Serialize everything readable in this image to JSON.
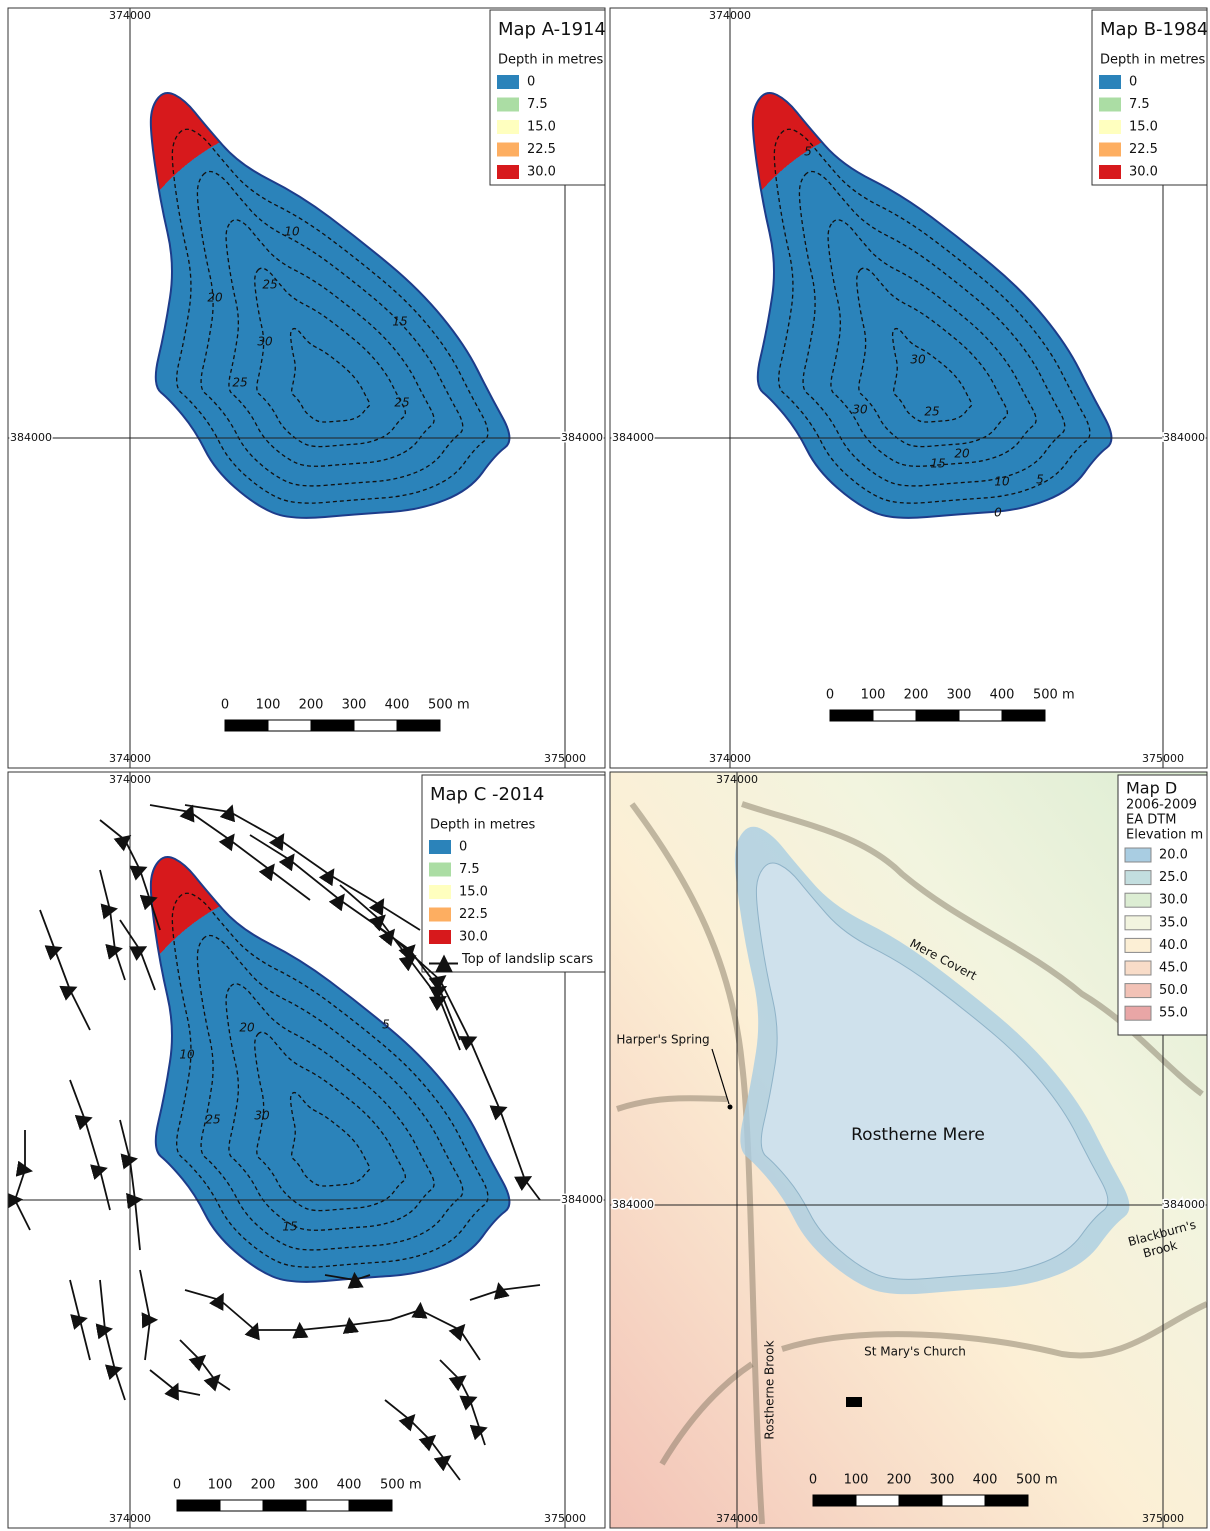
{
  "maps": [
    {
      "title": "Map A-1914",
      "legend_title": "Depth in metres",
      "legend": [
        {
          "label": "0",
          "color": "#2b83ba"
        },
        {
          "label": "7.5",
          "color": "#abdda4"
        },
        {
          "label": "15.0",
          "color": "#ffffbf"
        },
        {
          "label": "22.5",
          "color": "#fdae61"
        },
        {
          "label": "30.0",
          "color": "#d7191c"
        }
      ],
      "grid_labels": {
        "top": "374000",
        "left": "384000",
        "right": "384000",
        "bottom_left": "374000",
        "bottom_right": "375000"
      },
      "scale_labels": [
        "0",
        "100",
        "200",
        "300",
        "400",
        "500 m"
      ],
      "contour_labels": [
        "10",
        "20",
        "25",
        "15",
        "30",
        "25",
        "25"
      ]
    },
    {
      "title": "Map B-1984",
      "legend_title": "Depth in metres",
      "legend": [
        {
          "label": "0",
          "color": "#2b83ba"
        },
        {
          "label": "7.5",
          "color": "#abdda4"
        },
        {
          "label": "15.0",
          "color": "#ffffbf"
        },
        {
          "label": "22.5",
          "color": "#fdae61"
        },
        {
          "label": "30.0",
          "color": "#d7191c"
        }
      ],
      "grid_labels": {
        "top": "374000",
        "left": "384000",
        "right": "384000",
        "bottom_left": "374000",
        "bottom_right": "375000"
      },
      "scale_labels": [
        "0",
        "100",
        "200",
        "300",
        "400",
        "500 m"
      ],
      "contour_labels": [
        "5",
        "30",
        "30",
        "25",
        "20",
        "15",
        "10",
        "5",
        "0"
      ]
    },
    {
      "title": "Map C -2014",
      "legend_title": "Depth in metres",
      "legend": [
        {
          "label": "0",
          "color": "#2b83ba"
        },
        {
          "label": "7.5",
          "color": "#abdda4"
        },
        {
          "label": "15.0",
          "color": "#ffffbf"
        },
        {
          "label": "22.5",
          "color": "#fdae61"
        },
        {
          "label": "30.0",
          "color": "#d7191c"
        }
      ],
      "landslip_label": "Top of landslip scars",
      "grid_labels": {
        "top": "374000",
        "right": "384000",
        "bottom_left": "374000",
        "bottom_right": "375000"
      },
      "scale_labels": [
        "0",
        "100",
        "200",
        "300",
        "400",
        "500 m"
      ],
      "contour_labels": [
        "5",
        "20",
        "10",
        "30",
        "25",
        "15"
      ]
    },
    {
      "title": "Map D",
      "subtitle_lines": [
        "2006-2009",
        "EA DTM"
      ],
      "legend_title": "Elevation m",
      "legend": [
        {
          "label": "20.0",
          "color": "#a9cde2"
        },
        {
          "label": "25.0",
          "color": "#c3dedf"
        },
        {
          "label": "30.0",
          "color": "#dcedd3"
        },
        {
          "label": "35.0",
          "color": "#f2f4df"
        },
        {
          "label": "40.0",
          "color": "#fcefd5"
        },
        {
          "label": "45.0",
          "color": "#f8dcc8"
        },
        {
          "label": "50.0",
          "color": "#f2c2b6"
        },
        {
          "label": "55.0",
          "color": "#e9a6a6"
        }
      ],
      "grid_labels": {
        "top": "374000",
        "left": "384000",
        "right": "384000",
        "bottom_left": "374000",
        "bottom_right": "375000"
      },
      "scale_labels": [
        "0",
        "100",
        "200",
        "300",
        "400",
        "500 m"
      ],
      "place_labels": {
        "lake": "Rostherne Mere",
        "covert": "Mere Covert",
        "spring": "Harper's Spring",
        "church": "St Mary's Church",
        "brook_west": "Rostherne Brook",
        "brook_east": [
          "Blackburn's",
          "Brook"
        ]
      }
    }
  ]
}
